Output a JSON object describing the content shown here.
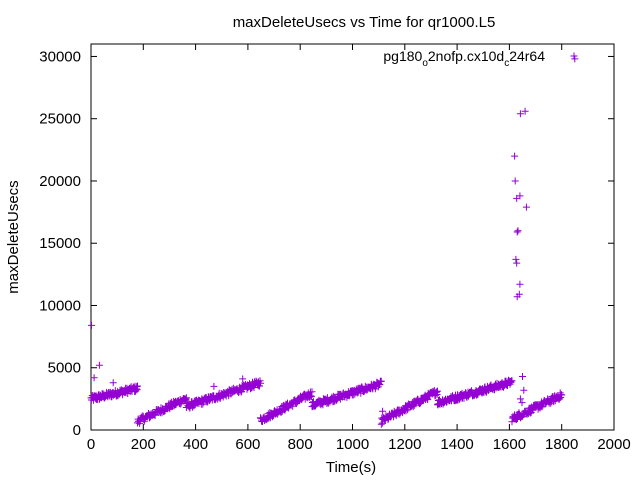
{
  "chart_data": {
    "type": "scatter",
    "title": "maxDeleteUsecs vs Time for qr1000.L5",
    "xlabel": "Time(s)",
    "ylabel": "maxDeleteUsecs",
    "xlim": [
      0,
      2000
    ],
    "ylim": [
      0,
      31000
    ],
    "xticks": [
      0,
      200,
      400,
      600,
      800,
      1000,
      1200,
      1400,
      1600,
      1800,
      2000
    ],
    "yticks": [
      0,
      5000,
      10000,
      15000,
      20000,
      25000,
      30000
    ],
    "xtick_labels": [
      "0",
      "200",
      "400",
      "600",
      "800",
      "1000",
      "1200",
      "1400",
      "1600",
      "1800",
      "2000"
    ],
    "ytick_labels": [
      "0",
      "5000",
      "10000",
      "15000",
      "20000",
      "25000",
      "30000"
    ],
    "grid": false,
    "legend_position": "top-right",
    "marker": "plus",
    "color": "#9400d3",
    "series": [
      {
        "name_parts": [
          "pg180",
          "o",
          "2nofp.cx10d",
          "c",
          "24r64"
        ],
        "segments": [
          {
            "x_start": 0,
            "x_end": 178,
            "y_start": 2500,
            "y_end": 3350,
            "points": 110
          },
          {
            "x_start": 178,
            "x_end": 365,
            "y_start": 700,
            "y_end": 2550,
            "points": 95
          },
          {
            "x_start": 365,
            "x_end": 648,
            "y_start": 1900,
            "y_end": 3800,
            "points": 150
          },
          {
            "x_start": 648,
            "x_end": 845,
            "y_start": 800,
            "y_end": 2950,
            "points": 100
          },
          {
            "x_start": 845,
            "x_end": 1110,
            "y_start": 2000,
            "y_end": 3700,
            "points": 140
          },
          {
            "x_start": 1110,
            "x_end": 1325,
            "y_start": 700,
            "y_end": 3100,
            "points": 110
          },
          {
            "x_start": 1325,
            "x_end": 1610,
            "y_start": 2200,
            "y_end": 3850,
            "points": 150
          },
          {
            "x_start": 1610,
            "x_end": 1800,
            "y_start": 900,
            "y_end": 2800,
            "points": 100
          }
        ],
        "outliers": [
          {
            "x": 2,
            "y": 8400
          },
          {
            "x": 12,
            "y": 4200
          },
          {
            "x": 32,
            "y": 5200
          },
          {
            "x": 85,
            "y": 3800
          },
          {
            "x": 470,
            "y": 3500
          },
          {
            "x": 580,
            "y": 4100
          },
          {
            "x": 1115,
            "y": 1500
          },
          {
            "x": 1620,
            "y": 22000
          },
          {
            "x": 1622,
            "y": 20000
          },
          {
            "x": 1628,
            "y": 18600
          },
          {
            "x": 1633,
            "y": 16000
          },
          {
            "x": 1630,
            "y": 15900
          },
          {
            "x": 1625,
            "y": 13700
          },
          {
            "x": 1628,
            "y": 13400
          },
          {
            "x": 1640,
            "y": 11700
          },
          {
            "x": 1630,
            "y": 10700
          },
          {
            "x": 1638,
            "y": 10900
          },
          {
            "x": 1640,
            "y": 18800
          },
          {
            "x": 1642,
            "y": 25400
          },
          {
            "x": 1660,
            "y": 25600
          },
          {
            "x": 1665,
            "y": 17900
          },
          {
            "x": 1650,
            "y": 4300
          },
          {
            "x": 1655,
            "y": 3200
          },
          {
            "x": 1642,
            "y": 2500
          },
          {
            "x": 1648,
            "y": 2200
          },
          {
            "x": 1850,
            "y": 29800
          }
        ]
      }
    ]
  }
}
